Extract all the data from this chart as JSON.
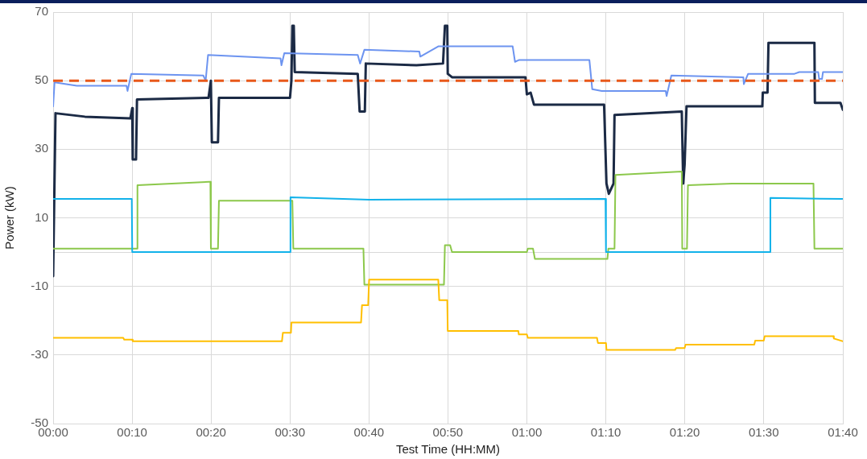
{
  "chart_data": {
    "type": "line",
    "xlabel": "Test Time (HH:MM)",
    "ylabel": "Power (kW)",
    "xlim": [
      0,
      1.667
    ],
    "ylim": [
      -50,
      70
    ],
    "xticks": [
      {
        "value": 0,
        "label": "00:00"
      },
      {
        "value": 0.1667,
        "label": "00:10"
      },
      {
        "value": 0.3333,
        "label": "00:20"
      },
      {
        "value": 0.5,
        "label": "00:30"
      },
      {
        "value": 0.6667,
        "label": "00:40"
      },
      {
        "value": 0.8333,
        "label": "00:50"
      },
      {
        "value": 1,
        "label": "01:00"
      },
      {
        "value": 1.1667,
        "label": "01:10"
      },
      {
        "value": 1.3333,
        "label": "01:20"
      },
      {
        "value": 1.5,
        "label": "01:30"
      },
      {
        "value": 1.667,
        "label": "01:40"
      }
    ],
    "yticks": [
      -50,
      -30,
      -10,
      {
        "value": 0,
        "label": null
      },
      10,
      30,
      50,
      70
    ],
    "grid": true,
    "legend": false,
    "marker": "none",
    "line_style": "solid",
    "ref_lines": [
      {
        "axis": "y",
        "value": 50,
        "label": null,
        "color": "#e8581a",
        "line_style": "dashed"
      }
    ],
    "series": [
      {
        "color": "#ffbf00",
        "x": [
          0,
          0.148,
          0.15,
          0.167,
          0.168,
          0.483,
          0.485,
          0.502,
          0.503,
          0.65,
          0.652,
          0.665,
          0.667,
          0.813,
          0.815,
          0.832,
          0.833,
          0.982,
          0.983,
          1.0,
          1.002,
          1.148,
          1.15,
          1.167,
          1.168,
          1.313,
          1.315,
          1.333,
          1.335,
          1.48,
          1.482,
          1.5,
          1.502,
          1.647,
          1.648,
          1.667
        ],
        "values": [
          -25,
          -25,
          -25.5,
          -25.5,
          -26,
          -26,
          -23.5,
          -23.5,
          -20.5,
          -20.5,
          -15.5,
          -15.5,
          -8,
          -8,
          -14,
          -14,
          -23,
          -23,
          -24,
          -24,
          -25,
          -25,
          -26.5,
          -26.5,
          -28.5,
          -28.5,
          -28,
          -28,
          -27,
          -27,
          -25.8,
          -25.8,
          -24.5,
          -24.5,
          -25.2,
          -26
        ]
      },
      {
        "color": "#12b2ea",
        "x": [
          0,
          0.166,
          0.167,
          0.5,
          0.501,
          0.667,
          1.166,
          1.167,
          1.513,
          1.514,
          1.667
        ],
        "values": [
          15.5,
          15.5,
          0,
          0,
          16,
          15.3,
          15.5,
          0,
          0,
          15.8,
          15.5
        ]
      },
      {
        "color": "#8cc84b",
        "x": [
          0,
          0.177,
          0.178,
          0.33,
          0.332,
          0.333,
          0.348,
          0.35,
          0.505,
          0.507,
          0.655,
          0.657,
          0.825,
          0.827,
          0.838,
          0.842,
          1.0,
          1.002,
          1.013,
          1.017,
          1.17,
          1.172,
          1.185,
          1.187,
          1.327,
          1.328,
          1.338,
          1.34,
          1.433,
          1.605,
          1.607,
          1.667
        ],
        "values": [
          1,
          1,
          19.5,
          20.5,
          20.5,
          1,
          1,
          15,
          15,
          1,
          1,
          -9.5,
          -9.5,
          2,
          2,
          0,
          0,
          1,
          1,
          -2,
          -2,
          1,
          1,
          22.5,
          23.5,
          1,
          1,
          19.5,
          20,
          20,
          1,
          1
        ]
      },
      {
        "color": "#6d94f0",
        "x": [
          0,
          0.003,
          0.05,
          0.155,
          0.157,
          0.165,
          0.317,
          0.322,
          0.327,
          0.48,
          0.482,
          0.488,
          0.643,
          0.648,
          0.657,
          0.773,
          0.775,
          0.813,
          0.97,
          0.975,
          0.983,
          1.132,
          1.138,
          1.158,
          1.293,
          1.295,
          1.305,
          1.457,
          1.458,
          1.467,
          1.565,
          1.575,
          1.615,
          1.617,
          1.623,
          1.625,
          1.667
        ],
        "values": [
          42.5,
          49.5,
          48.5,
          48.5,
          47,
          52,
          51.5,
          50,
          57.5,
          56.5,
          54.5,
          58,
          57.5,
          55,
          59,
          58.5,
          57,
          60,
          60,
          55.5,
          56,
          56,
          47.5,
          47,
          47,
          45.5,
          51.5,
          51,
          49,
          52,
          52,
          52.5,
          52.5,
          50.5,
          50.5,
          52.5,
          52.5
        ]
      },
      {
        "color": "#1b2a45",
        "x": [
          0,
          0.005,
          0.067,
          0.163,
          0.167,
          0.168,
          0.175,
          0.177,
          0.328,
          0.333,
          0.335,
          0.348,
          0.35,
          0.5,
          0.503,
          0.505,
          0.508,
          0.51,
          0.643,
          0.647,
          0.658,
          0.66,
          0.767,
          0.823,
          0.827,
          0.832,
          0.833,
          0.842,
          0.997,
          1.0,
          1.008,
          1.015,
          1.163,
          1.168,
          1.173,
          1.183,
          1.185,
          1.327,
          1.33,
          1.333,
          1.337,
          1.497,
          1.498,
          1.508,
          1.51,
          1.607,
          1.608,
          1.662,
          1.667
        ],
        "values": [
          -7,
          40.5,
          39.5,
          39,
          42,
          27,
          27,
          44.5,
          45,
          50,
          32,
          32,
          45,
          45,
          50,
          66,
          66,
          52.5,
          52,
          41,
          41,
          55,
          54.5,
          55,
          66,
          66,
          52,
          51,
          51,
          46,
          46.5,
          43,
          43,
          20,
          17,
          20,
          40,
          41,
          20,
          25.5,
          42.5,
          42.5,
          46.5,
          46.5,
          61,
          61,
          43.5,
          43.5,
          41.5
        ]
      }
    ]
  }
}
